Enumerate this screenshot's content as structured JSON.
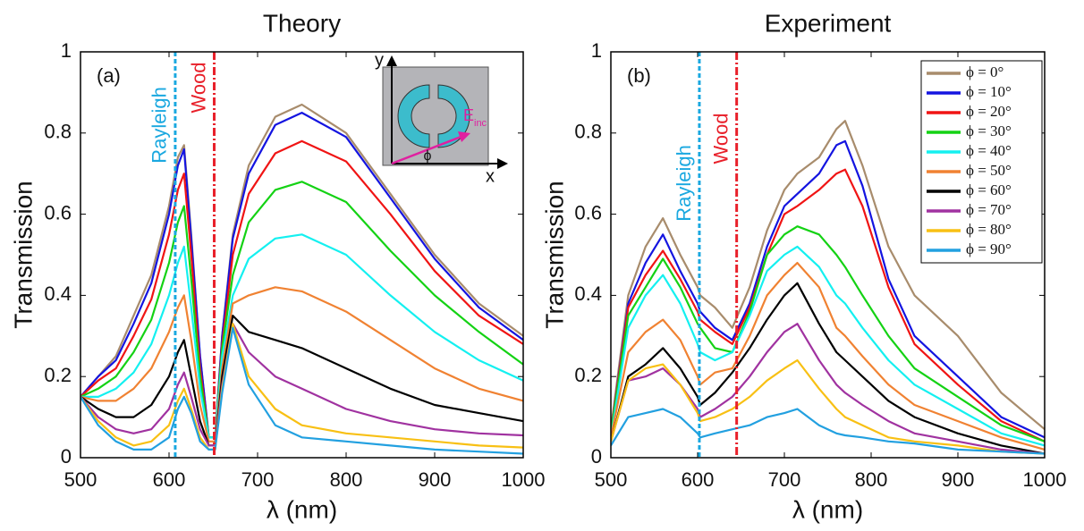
{
  "chart_data": [
    {
      "type": "line",
      "title": "Theory",
      "panel_label": "(a)",
      "x_label": "λ (nm)",
      "y_label": "Transmission",
      "xlim": [
        500,
        1000
      ],
      "ylim": [
        0,
        1
      ],
      "xticks": [
        500,
        600,
        700,
        800,
        900,
        1000
      ],
      "yticks": [
        0,
        0.2,
        0.4,
        0.6,
        0.8,
        1
      ],
      "x": [
        500,
        520,
        540,
        560,
        580,
        600,
        610,
        617,
        625,
        635,
        645,
        652,
        660,
        672,
        690,
        720,
        750,
        800,
        850,
        900,
        950,
        1000
      ],
      "vlines": [
        {
          "x": 607,
          "label": "Rayleigh",
          "color": "#1aa8e0"
        },
        {
          "x": 651,
          "label": "Wood",
          "color": "#e8202a"
        }
      ],
      "inset": {
        "x_label": "x",
        "y_label": "y",
        "angle_label": "ϕ",
        "field_label": "E",
        "field_subscript": "inc"
      },
      "series": [
        {
          "color": "#a88c6c",
          "values": [
            0.15,
            0.2,
            0.25,
            0.35,
            0.45,
            0.62,
            0.74,
            0.77,
            0.55,
            0.25,
            0.05,
            0.05,
            0.3,
            0.55,
            0.72,
            0.84,
            0.87,
            0.8,
            0.65,
            0.5,
            0.38,
            0.3
          ]
        },
        {
          "color": "#1414e0",
          "values": [
            0.15,
            0.2,
            0.24,
            0.33,
            0.43,
            0.6,
            0.72,
            0.76,
            0.54,
            0.25,
            0.05,
            0.05,
            0.3,
            0.54,
            0.7,
            0.82,
            0.85,
            0.79,
            0.64,
            0.49,
            0.37,
            0.29
          ]
        },
        {
          "color": "#f01414",
          "values": [
            0.15,
            0.19,
            0.22,
            0.3,
            0.39,
            0.55,
            0.66,
            0.7,
            0.5,
            0.22,
            0.05,
            0.05,
            0.28,
            0.5,
            0.65,
            0.75,
            0.78,
            0.73,
            0.6,
            0.46,
            0.35,
            0.28
          ]
        },
        {
          "color": "#14d214",
          "values": [
            0.15,
            0.17,
            0.2,
            0.26,
            0.34,
            0.48,
            0.58,
            0.62,
            0.44,
            0.2,
            0.05,
            0.05,
            0.27,
            0.45,
            0.58,
            0.66,
            0.68,
            0.63,
            0.51,
            0.4,
            0.31,
            0.23
          ]
        },
        {
          "color": "#14f0f0",
          "values": [
            0.15,
            0.15,
            0.17,
            0.21,
            0.28,
            0.4,
            0.48,
            0.52,
            0.37,
            0.17,
            0.05,
            0.05,
            0.25,
            0.4,
            0.49,
            0.54,
            0.55,
            0.5,
            0.4,
            0.31,
            0.24,
            0.19
          ]
        },
        {
          "color": "#f08232",
          "values": [
            0.15,
            0.14,
            0.14,
            0.17,
            0.22,
            0.31,
            0.37,
            0.4,
            0.29,
            0.13,
            0.04,
            0.04,
            0.22,
            0.38,
            0.4,
            0.42,
            0.41,
            0.36,
            0.29,
            0.22,
            0.17,
            0.14
          ]
        },
        {
          "color": "#000000",
          "values": [
            0.15,
            0.12,
            0.1,
            0.1,
            0.13,
            0.2,
            0.26,
            0.29,
            0.2,
            0.09,
            0.03,
            0.03,
            0.2,
            0.35,
            0.31,
            0.29,
            0.27,
            0.22,
            0.17,
            0.13,
            0.11,
            0.09
          ]
        },
        {
          "color": "#a032a0",
          "values": [
            0.15,
            0.1,
            0.07,
            0.06,
            0.07,
            0.12,
            0.18,
            0.21,
            0.15,
            0.07,
            0.03,
            0.03,
            0.18,
            0.33,
            0.26,
            0.2,
            0.17,
            0.12,
            0.09,
            0.07,
            0.06,
            0.055
          ]
        },
        {
          "color": "#f8c014",
          "values": [
            0.15,
            0.09,
            0.05,
            0.03,
            0.04,
            0.08,
            0.14,
            0.17,
            0.12,
            0.05,
            0.02,
            0.02,
            0.17,
            0.33,
            0.2,
            0.12,
            0.08,
            0.06,
            0.05,
            0.04,
            0.03,
            0.025
          ]
        },
        {
          "color": "#22a0e0",
          "values": [
            0.15,
            0.08,
            0.04,
            0.02,
            0.02,
            0.05,
            0.12,
            0.15,
            0.11,
            0.04,
            0.02,
            0.02,
            0.16,
            0.32,
            0.18,
            0.08,
            0.05,
            0.04,
            0.03,
            0.02,
            0.015,
            0.01
          ]
        }
      ]
    },
    {
      "type": "line",
      "title": "Experiment",
      "panel_label": "(b)",
      "x_label": "λ (nm)",
      "y_label": "Transmission",
      "xlim": [
        500,
        1000
      ],
      "ylim": [
        0,
        1
      ],
      "xticks": [
        500,
        600,
        700,
        800,
        900,
        1000
      ],
      "yticks": [
        0,
        0.2,
        0.4,
        0.6,
        0.8,
        1
      ],
      "x": [
        500,
        520,
        540,
        560,
        580,
        600,
        603,
        620,
        640,
        660,
        680,
        700,
        715,
        740,
        760,
        770,
        790,
        820,
        850,
        900,
        950,
        1000
      ],
      "vlines": [
        {
          "x": 602,
          "label": "Rayleigh",
          "color": "#1aa8e0"
        },
        {
          "x": 645,
          "label": "Wood",
          "color": "#e8202a"
        }
      ],
      "series": [
        {
          "name": "ϕ = 0°",
          "color": "#a88c6c",
          "values": [
            0.07,
            0.4,
            0.52,
            0.59,
            0.5,
            0.42,
            0.4,
            0.37,
            0.32,
            0.42,
            0.56,
            0.66,
            0.7,
            0.74,
            0.81,
            0.83,
            0.72,
            0.52,
            0.4,
            0.3,
            0.16,
            0.07
          ]
        },
        {
          "name": "ϕ = 10°",
          "color": "#1414e0",
          "values": [
            0.06,
            0.38,
            0.48,
            0.55,
            0.46,
            0.38,
            0.36,
            0.32,
            0.29,
            0.38,
            0.52,
            0.62,
            0.65,
            0.7,
            0.77,
            0.78,
            0.67,
            0.44,
            0.3,
            0.2,
            0.1,
            0.05
          ]
        },
        {
          "name": "ϕ = 20°",
          "color": "#f01414",
          "values": [
            0.06,
            0.37,
            0.45,
            0.51,
            0.44,
            0.36,
            0.34,
            0.31,
            0.28,
            0.37,
            0.5,
            0.6,
            0.62,
            0.66,
            0.7,
            0.71,
            0.62,
            0.42,
            0.28,
            0.18,
            0.09,
            0.04
          ]
        },
        {
          "name": "ϕ = 30°",
          "color": "#14d214",
          "values": [
            0.06,
            0.35,
            0.42,
            0.49,
            0.42,
            0.33,
            0.32,
            0.27,
            0.26,
            0.36,
            0.5,
            0.55,
            0.57,
            0.55,
            0.5,
            0.47,
            0.4,
            0.3,
            0.22,
            0.15,
            0.08,
            0.04
          ]
        },
        {
          "name": "ϕ = 40°",
          "color": "#14f0f0",
          "values": [
            0.05,
            0.32,
            0.4,
            0.45,
            0.38,
            0.28,
            0.26,
            0.24,
            0.26,
            0.35,
            0.46,
            0.5,
            0.52,
            0.47,
            0.4,
            0.38,
            0.32,
            0.24,
            0.18,
            0.12,
            0.06,
            0.03
          ]
        },
        {
          "name": "ϕ = 50°",
          "color": "#f08232",
          "values": [
            0.05,
            0.26,
            0.31,
            0.34,
            0.29,
            0.2,
            0.18,
            0.21,
            0.22,
            0.3,
            0.4,
            0.45,
            0.48,
            0.42,
            0.32,
            0.3,
            0.25,
            0.18,
            0.13,
            0.09,
            0.05,
            0.02
          ]
        },
        {
          "name": "ϕ = 60°",
          "color": "#000000",
          "values": [
            0.04,
            0.2,
            0.23,
            0.27,
            0.22,
            0.15,
            0.13,
            0.16,
            0.21,
            0.27,
            0.34,
            0.4,
            0.43,
            0.33,
            0.26,
            0.24,
            0.2,
            0.14,
            0.1,
            0.06,
            0.03,
            0.01
          ]
        },
        {
          "name": "ϕ = 70°",
          "color": "#a032a0",
          "values": [
            0.04,
            0.19,
            0.2,
            0.22,
            0.18,
            0.12,
            0.1,
            0.12,
            0.15,
            0.2,
            0.26,
            0.31,
            0.33,
            0.24,
            0.18,
            0.16,
            0.13,
            0.09,
            0.06,
            0.04,
            0.02,
            0.01
          ]
        },
        {
          "name": "ϕ = 80°",
          "color": "#f8c014",
          "values": [
            0.04,
            0.19,
            0.22,
            0.23,
            0.18,
            0.11,
            0.09,
            0.1,
            0.12,
            0.15,
            0.19,
            0.22,
            0.24,
            0.17,
            0.12,
            0.1,
            0.08,
            0.05,
            0.04,
            0.03,
            0.015,
            0.01
          ]
        },
        {
          "name": "ϕ = 90°",
          "color": "#22a0e0",
          "values": [
            0.03,
            0.1,
            0.11,
            0.12,
            0.1,
            0.06,
            0.05,
            0.06,
            0.07,
            0.08,
            0.1,
            0.11,
            0.12,
            0.08,
            0.06,
            0.055,
            0.05,
            0.04,
            0.035,
            0.02,
            0.015,
            0.01
          ]
        }
      ]
    }
  ]
}
